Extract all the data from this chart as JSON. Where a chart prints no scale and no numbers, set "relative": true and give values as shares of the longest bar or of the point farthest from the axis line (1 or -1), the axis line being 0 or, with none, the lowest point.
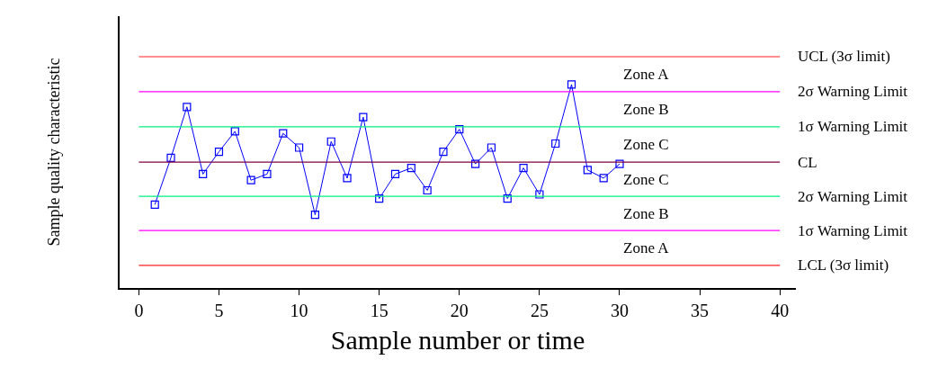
{
  "chart_data": {
    "type": "line",
    "relative": true,
    "xlabel": "Sample number or time",
    "ylabel": "Sample quality characteristic",
    "x": [
      1,
      2,
      3,
      4,
      5,
      6,
      7,
      8,
      9,
      10,
      11,
      12,
      13,
      14,
      15,
      16,
      17,
      18,
      19,
      20,
      21,
      22,
      23,
      24,
      25,
      26,
      27,
      28,
      29,
      30
    ],
    "series": [
      {
        "color": "#0000ff",
        "values": [
          0.41,
          0.64,
          0.89,
          0.56,
          0.67,
          0.77,
          0.53,
          0.56,
          0.76,
          0.69,
          0.36,
          0.72,
          0.54,
          0.84,
          0.44,
          0.56,
          0.59,
          0.48,
          0.67,
          0.78,
          0.61,
          0.69,
          0.44,
          0.59,
          0.46,
          0.71,
          1.0,
          0.58,
          0.54,
          0.61
        ]
      }
    ],
    "marker": "square",
    "line_style": "solid",
    "grid": false,
    "xlim": [
      -1.2,
      41
    ],
    "xticks": [
      0,
      5,
      10,
      15,
      20,
      25,
      30,
      35,
      40
    ],
    "ref_lines": [
      {
        "axis": "y",
        "value": 1.137,
        "label": "UCL (3σ limit)",
        "color": "#ff2020"
      },
      {
        "axis": "y",
        "value": 0.965,
        "label": "2σ Warning Limit",
        "color": "#ff00ff"
      },
      {
        "axis": "y",
        "value": 0.792,
        "label": "1σ Warning Limit",
        "color": "#00f080"
      },
      {
        "axis": "y",
        "value": 0.619,
        "label": "CL",
        "color": "#800040"
      },
      {
        "axis": "y",
        "value": 0.451,
        "label": "2σ Warning Limit",
        "color": "#00f080"
      },
      {
        "axis": "y",
        "value": 0.283,
        "label": "1σ Warning Limit",
        "color": "#ff00ff"
      },
      {
        "axis": "y",
        "value": 0.111,
        "label": "LCL (3σ limit)",
        "color": "#ff2020"
      }
    ],
    "annotations": [
      "Zone A",
      "Zone B",
      "Zone C",
      "Zone C",
      "Zone B",
      "Zone A"
    ]
  }
}
